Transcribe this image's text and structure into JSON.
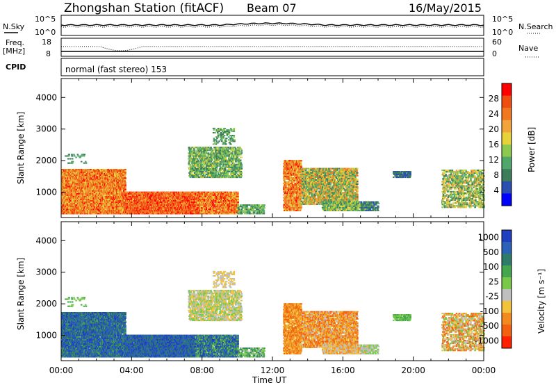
{
  "header": {
    "station": "Zhongshan Station (fitACF)",
    "beam": "Beam 07",
    "date": "16/May/2015"
  },
  "noise_panel": {
    "left_label": "N.Sky",
    "right_label": "N.Search",
    "ticks": [
      "10^5",
      "10^0"
    ]
  },
  "freq_panel": {
    "left_label": "Freq.",
    "left_unit": "[MHz]",
    "left_ticks": [
      "18",
      "8"
    ],
    "right_label": "Nave",
    "right_ticks": [
      "60",
      "0"
    ]
  },
  "cpid_panel": {
    "label": "CPID",
    "value": "normal (fast stereo) 153"
  },
  "colors": {
    "power": [
      "#0000ff",
      "#2a4fb0",
      "#3d7d5a",
      "#4fa76a",
      "#8fc84e",
      "#e6d23a",
      "#f2a33a",
      "#f07820",
      "#f04e10",
      "#ff0000"
    ],
    "velocity": [
      "#1f3fc0",
      "#2b62b8",
      "#2f7b6a",
      "#45a650",
      "#7ac84a",
      "#bfbfbf",
      "#f2c23a",
      "#f28a20",
      "#f26010",
      "#ff2000"
    ]
  },
  "chart_data": [
    {
      "type": "heatmap",
      "name": "power",
      "ylabel": "Slant Range [km]",
      "xlabel": "",
      "y_ticks": [
        1000,
        2000,
        3000,
        4000
      ],
      "ylim": [
        200,
        4600
      ],
      "x_ticks": [
        "00:00",
        "04:00",
        "08:00",
        "12:00",
        "16:00",
        "20:00",
        "00:00"
      ],
      "xlim_hours": [
        0,
        24
      ],
      "colorbar": {
        "label": "Power [dB]",
        "ticks": [
          "4",
          "8",
          "12",
          "16",
          "20",
          "24",
          "28"
        ],
        "range": [
          0,
          32
        ]
      }
    },
    {
      "type": "heatmap",
      "name": "velocity",
      "ylabel": "Slant Range [km]",
      "xlabel": "Time UT",
      "y_ticks": [
        1000,
        2000,
        3000,
        4000
      ],
      "ylim": [
        200,
        4600
      ],
      "x_ticks": [
        "00:00",
        "04:00",
        "08:00",
        "12:00",
        "16:00",
        "20:00",
        "00:00"
      ],
      "xlim_hours": [
        0,
        24
      ],
      "colorbar": {
        "label": "Velocity [m s⁻¹]",
        "ticks": [
          "1000",
          "500",
          "100",
          "25",
          "-25",
          "-100",
          "-500",
          "-1000"
        ]
      }
    }
  ]
}
